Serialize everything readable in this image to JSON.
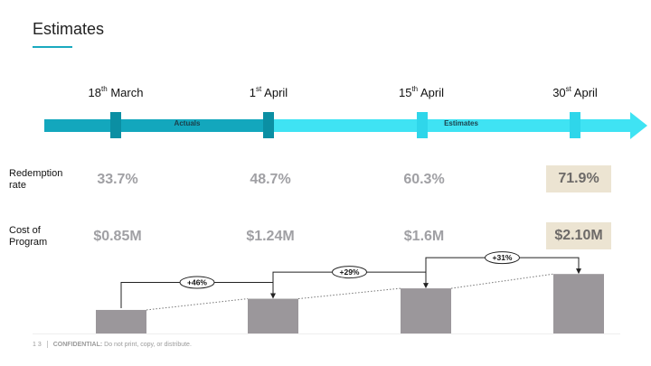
{
  "slide": {
    "title": "Estimates",
    "page_number": "1 3",
    "confidential_label": "CONFIDENTIAL:",
    "confidential_text": "Do not print, copy, or distribute."
  },
  "timeline": {
    "dates": [
      {
        "day": "18",
        "suffix": "th",
        "month": "March"
      },
      {
        "day": "1",
        "suffix": "st",
        "month": "April"
      },
      {
        "day": "15",
        "suffix": "th",
        "month": "April"
      },
      {
        "day": "30",
        "suffix": "st",
        "month": "April"
      }
    ],
    "segments": {
      "actuals": "Actuals",
      "estimates": "Estimates"
    },
    "colors": {
      "actuals": "#13a7bd",
      "estimates": "#3fe3f3",
      "marker_actuals": "#0b8fa3",
      "marker_estimates": "#2fd6ea"
    }
  },
  "rows": {
    "redemption": {
      "label_line1": "Redemption",
      "label_line2": "rate",
      "values": [
        "33.7%",
        "48.7%",
        "60.3%",
        "71.9%"
      ]
    },
    "cost": {
      "label_line1": "Cost of",
      "label_line2": "Program",
      "values": [
        "$0.85M",
        "$1.24M",
        "$1.6M",
        "$2.10M"
      ]
    }
  },
  "chart_data": {
    "type": "bar",
    "categories": [
      "18th March",
      "1st April",
      "15th April",
      "30st April"
    ],
    "values": [
      0.85,
      1.24,
      1.6,
      2.1
    ],
    "ylim": [
      0,
      2.2
    ],
    "growth_labels": [
      "+46%",
      "+29%",
      "+31%"
    ],
    "bar_color": "#9b979b",
    "title": "",
    "xlabel": "",
    "ylabel": ""
  }
}
